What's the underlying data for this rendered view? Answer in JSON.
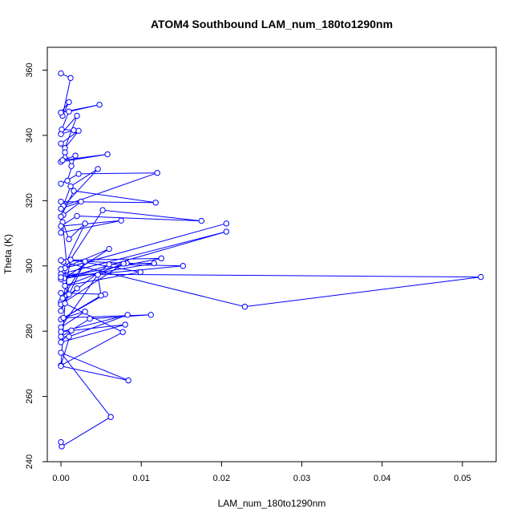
{
  "chart_data": {
    "type": "line",
    "title": "ATOM4 Southbound LAM_num_180to1290nm",
    "xlabel": "LAM_num_180to1290nm",
    "ylabel": "Theta (K)",
    "xlim": [
      -0.0017,
      0.0542
    ],
    "ylim": [
      240,
      367
    ],
    "xticks": [
      0.0,
      0.01,
      0.02,
      0.03,
      0.04,
      0.05
    ],
    "xtick_labels": [
      "0.00",
      "0.01",
      "0.02",
      "0.03",
      "0.04",
      "0.05"
    ],
    "yticks": [
      240,
      260,
      280,
      300,
      320,
      340,
      360
    ],
    "ytick_labels": [
      "240",
      "260",
      "280",
      "300",
      "320",
      "340",
      "360"
    ],
    "grid": false,
    "marker": "open-circle",
    "color": "#0000ff",
    "series": [
      {
        "x": [
          0.0,
          0.0012,
          0.0002,
          0.001,
          0.0,
          0.0048,
          0.001,
          0.0001,
          0.0016,
          0.0,
          0.002,
          0.0005,
          0.0022,
          0.0,
          0.0013,
          0.0005,
          0.0,
          0.0058,
          0.0002,
          0.0018,
          0.0008,
          0.0,
          0.0022,
          0.012,
          0.0003,
          0.0012,
          0.0046,
          0.0,
          0.0025,
          0.0003,
          0.0,
          0.0118,
          0.0016,
          0.0,
          0.001,
          0.003,
          0.0007,
          0.0002,
          0.0,
          0.0075,
          0.0,
          0.002,
          0.0175,
          0.0052,
          0.0005,
          0.0206,
          0.0,
          0.006,
          0.0004,
          0.0206,
          0.0,
          0.0523,
          0.0229,
          0.0003,
          0.001,
          0.0,
          0.0116,
          0.0082,
          0.0,
          0.0125,
          0.0,
          0.0152,
          0.006,
          0.0,
          0.002,
          0.0,
          0.0078,
          0.0005,
          0.0099,
          0.0012,
          0.0,
          0.003,
          0.0002,
          0.0,
          0.0055,
          0.0,
          0.005,
          0.0046,
          0.0,
          0.003,
          0.0003,
          0.0112,
          0.0036,
          0.0,
          0.001,
          0.0083,
          0.0,
          0.008,
          0.0,
          0.0013,
          0.0,
          0.0077,
          0.0005,
          0.0,
          0.0084,
          0.0,
          0.0062,
          0.0001,
          0.0
        ],
        "y": [
          359,
          357.6,
          346,
          350.2,
          347,
          349.4,
          347.3,
          341.8,
          341.6,
          340.4,
          346,
          336.1,
          341.4,
          337.5,
          330.6,
          334.8,
          331.9,
          334.2,
          332.4,
          333.8,
          326.1,
          325.2,
          328.2,
          328.5,
          318.4,
          324.4,
          329.7,
          317.5,
          319.7,
          315.6,
          319.7,
          319.4,
          323,
          315.1,
          308.2,
          313,
          301.3,
          313.4,
          310.2,
          313.9,
          312.2,
          315.3,
          313.8,
          317.1,
          299.3,
          313,
          299,
          305.2,
          296.2,
          310.5,
          297.5,
          296.6,
          287.5,
          301.2,
          291.3,
          295.9,
          300.8,
          300.8,
          301.7,
          302.3,
          296.5,
          300,
          300.5,
          289,
          293.1,
          288.2,
          300.7,
          293.9,
          298.1,
          301.9,
          286.2,
          301.4,
          290.1,
          291.7,
          291.3,
          283.6,
          290.9,
          297.3,
          281.2,
          286,
          284.1,
          285,
          283.8,
          278.3,
          278.3,
          285,
          279.8,
          282,
          276.6,
          280.2,
          269.5,
          279.7,
          288.5,
          269.3,
          264.9,
          273.4,
          253.7,
          244.7,
          246
        ]
      }
    ]
  }
}
